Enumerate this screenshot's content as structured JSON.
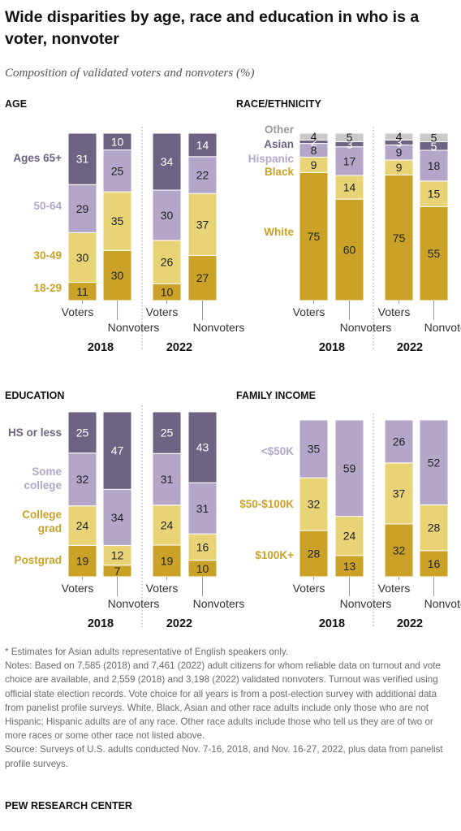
{
  "title": "Wide disparities by age, race and education in who is a voter, nonvoter",
  "subtitle": "Composition of validated voters and nonvoters (%)",
  "colors": {
    "darkgold": "#c9a227",
    "lightgold": "#e8d377",
    "lavender": "#b3a6c9",
    "purple": "#6f6383",
    "gray": "#c9c9c9",
    "label_muted": "#9a9a9a"
  },
  "notes": {
    "asterisk": "* Estimates for Asian adults representative of English speakers only.",
    "notes": "Notes: Based on 7,585 (2018) and 7,461 (2022) adult citizens for whom reliable data on turnout and vote choice are available, and 2,559 (2018) and 3,198 (2022) validated nonvoters. Turnout was verified using official state election records. Vote choice for all years is from a post-election survey with additional data from panelist profile surveys. White, Black, Asian and other race adults include only those who are not Hispanic; Hispanic adults are of any race. Other race adults include those who tell us they are of two or more races or some other race not listed above.",
    "source": "Source: Surveys of U.S. adults conducted Nov. 7-16, 2018, and Nov. 16-27, 2022, plus data from panelist profile surveys."
  },
  "brand": "PEW RESEARCH CENTER",
  "chart_data": [
    {
      "type": "bar",
      "stacked": true,
      "title": "AGE",
      "categories": [
        "Voters 2018",
        "Nonvoters 2018",
        "Voters 2022",
        "Nonvoters 2022"
      ],
      "category_labels": [
        "Voters",
        "Nonvoters",
        "Voters",
        "Nonvoters"
      ],
      "years": [
        "2018",
        "2022"
      ],
      "series": [
        {
          "name": "18-29",
          "color": "#c9a227",
          "values": [
            11,
            30,
            10,
            27
          ]
        },
        {
          "name": "30-49",
          "color": "#e8d377",
          "values": [
            30,
            35,
            26,
            37
          ]
        },
        {
          "name": "50-64",
          "color": "#b3a6c9",
          "values": [
            29,
            25,
            30,
            22
          ]
        },
        {
          "name": "Ages 65+",
          "color": "#6f6383",
          "values": [
            31,
            10,
            34,
            14
          ]
        }
      ]
    },
    {
      "type": "bar",
      "stacked": true,
      "title": "RACE/ETHNICITY",
      "categories": [
        "Voters 2018",
        "Nonvoters 2018",
        "Voters 2022",
        "Nonvoters 2022"
      ],
      "category_labels": [
        "Voters",
        "Nonvoters",
        "Voters",
        "Nonvoters"
      ],
      "years": [
        "2018",
        "2022"
      ],
      "series": [
        {
          "name": "White",
          "color": "#c9a227",
          "values": [
            75,
            60,
            75,
            55
          ]
        },
        {
          "name": "Black",
          "color": "#e8d377",
          "values": [
            9,
            14,
            9,
            15
          ]
        },
        {
          "name": "Hispanic",
          "color": "#b3a6c9",
          "values": [
            8,
            17,
            9,
            18
          ]
        },
        {
          "name": "Asian",
          "color": "#6f6383",
          "values": [
            2,
            3,
            3,
            5
          ]
        },
        {
          "name": "Other",
          "color": "#c9c9c9",
          "values": [
            4,
            5,
            4,
            5
          ]
        }
      ]
    },
    {
      "type": "bar",
      "stacked": true,
      "title": "EDUCATION",
      "categories": [
        "Voters 2018",
        "Nonvoters 2018",
        "Voters 2022",
        "Nonvoters 2022"
      ],
      "category_labels": [
        "Voters",
        "Nonvoters",
        "Voters",
        "Nonvoters"
      ],
      "years": [
        "2018",
        "2022"
      ],
      "series": [
        {
          "name": "Postgrad",
          "color": "#c9a227",
          "values": [
            19,
            7,
            19,
            10
          ]
        },
        {
          "name": "College grad",
          "color": "#e8d377",
          "values": [
            24,
            12,
            24,
            16
          ]
        },
        {
          "name": "Some college",
          "color": "#b3a6c9",
          "values": [
            32,
            34,
            31,
            31
          ]
        },
        {
          "name": "HS or less",
          "color": "#6f6383",
          "values": [
            25,
            47,
            25,
            43
          ]
        }
      ]
    },
    {
      "type": "bar",
      "stacked": true,
      "title": "FAMILY INCOME",
      "categories": [
        "Voters 2018",
        "Nonvoters 2018",
        "Voters 2022",
        "Nonvoters 2022"
      ],
      "category_labels": [
        "Voters",
        "Nonvoters",
        "Voters",
        "Nonvoters"
      ],
      "years": [
        "2018",
        "2022"
      ],
      "series": [
        {
          "name": "$100K+",
          "color": "#c9a227",
          "values": [
            28,
            13,
            32,
            16
          ]
        },
        {
          "name": "$50-$100K",
          "color": "#e8d377",
          "values": [
            32,
            24,
            37,
            28
          ]
        },
        {
          "name": "<$50K",
          "color": "#b3a6c9",
          "values": [
            35,
            59,
            26,
            52
          ]
        }
      ]
    }
  ]
}
